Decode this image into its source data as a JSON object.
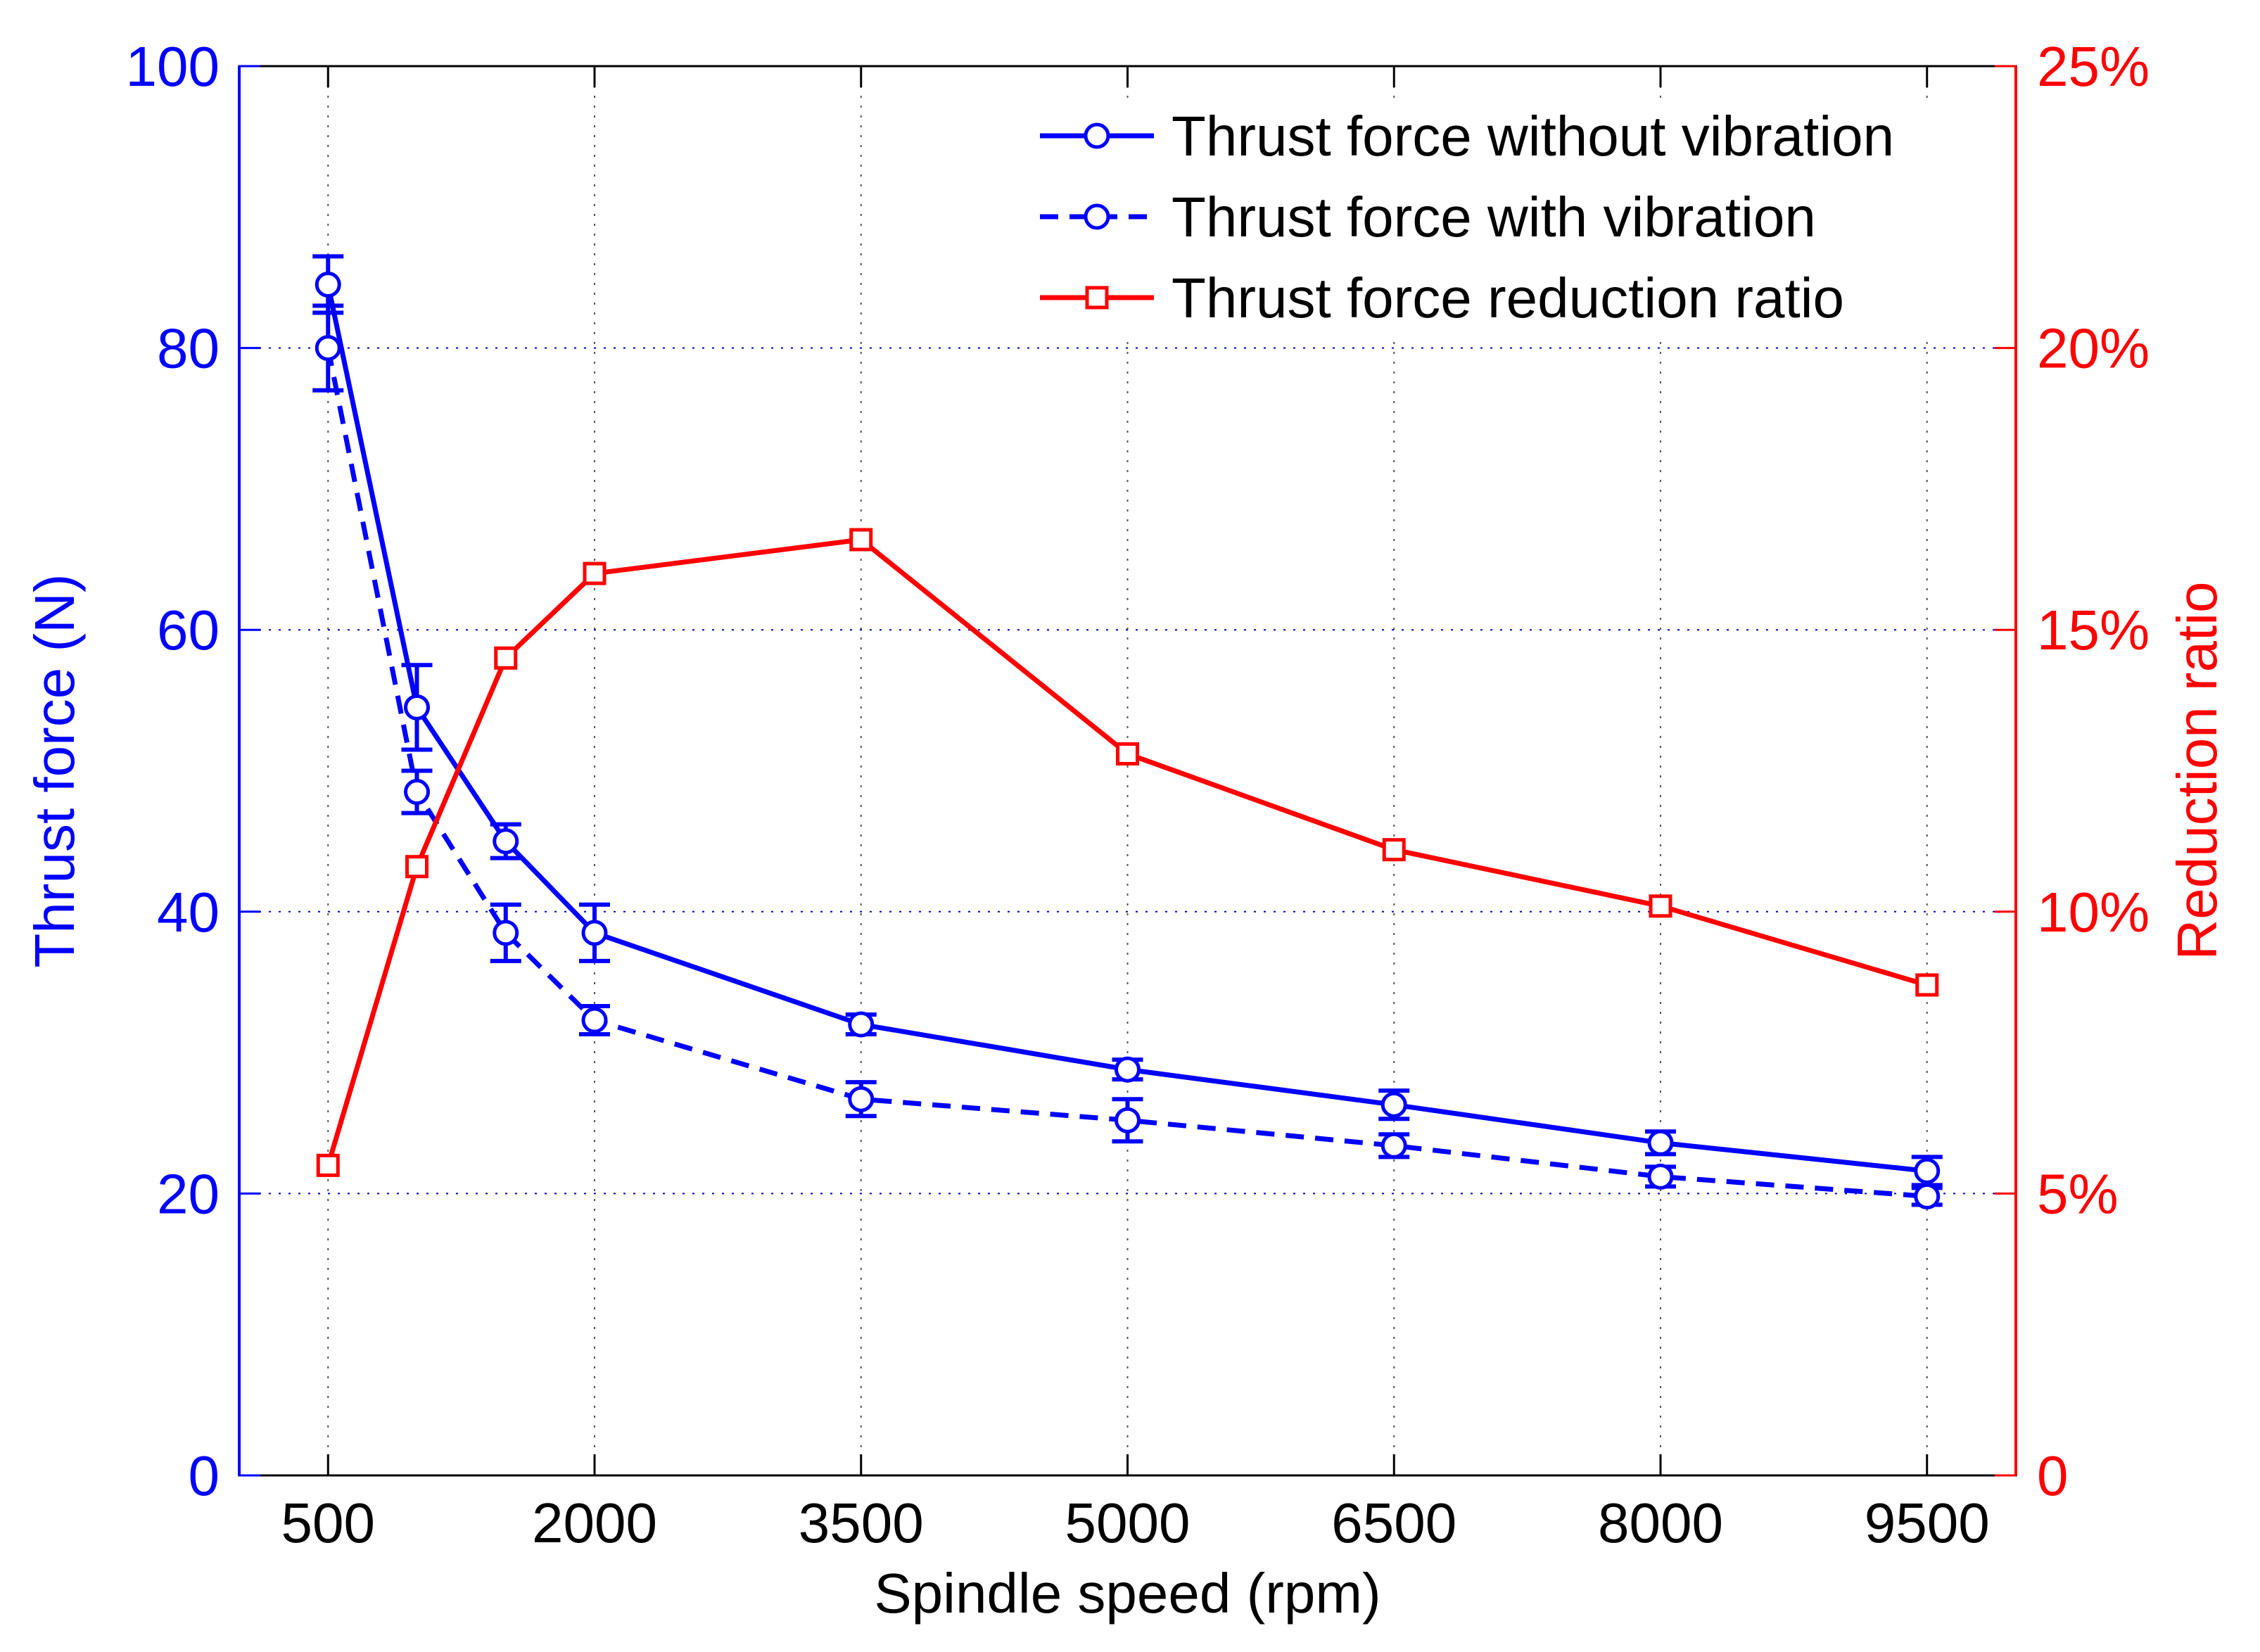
{
  "chart_data": {
    "type": "line",
    "xlabel": "Spindle speed (rpm)",
    "ylabel_left": "Thrust force (N)",
    "ylabel_right": "Reduction ratio",
    "x_domain": [
      0,
      10000
    ],
    "x_tick_values": [
      500,
      2000,
      3500,
      5000,
      6500,
      8000,
      9500
    ],
    "x_tick_labels": [
      "500",
      "2000",
      "3500",
      "5000",
      "6500",
      "8000",
      "9500"
    ],
    "y_left_range": [
      0,
      100
    ],
    "y_left_tick_values": [
      0,
      20,
      40,
      60,
      80,
      100
    ],
    "y_left_tick_labels": [
      "0",
      "20",
      "40",
      "60",
      "80",
      "100"
    ],
    "y_right_range": [
      0,
      25
    ],
    "y_right_tick_values": [
      0,
      5,
      10,
      15,
      20,
      25
    ],
    "y_right_tick_labels": [
      "0",
      "5%",
      "10%",
      "15%",
      "20%",
      "25%"
    ],
    "grid": true,
    "legend_position": "top-right",
    "series": [
      {
        "name": "Thrust force without vibration",
        "axis": "left",
        "color": "#0000ff",
        "line_style": "solid",
        "marker": "circle",
        "x": [
          500,
          1000,
          1500,
          2000,
          3500,
          5000,
          6500,
          8000,
          9500
        ],
        "y": [
          84.5,
          54.5,
          45.0,
          38.5,
          32.0,
          28.8,
          26.3,
          23.6,
          21.6
        ],
        "error": [
          2.0,
          3.0,
          1.2,
          2.0,
          0.7,
          0.7,
          1.0,
          0.8,
          1.0
        ]
      },
      {
        "name": "Thrust force with vibration",
        "axis": "left",
        "color": "#0000ff",
        "line_style": "dashed",
        "marker": "circle",
        "x": [
          500,
          1000,
          1500,
          2000,
          3500,
          5000,
          6500,
          8000,
          9500
        ],
        "y": [
          80.0,
          48.5,
          38.5,
          32.3,
          26.7,
          25.2,
          23.4,
          21.2,
          19.8
        ],
        "error": [
          3.0,
          1.5,
          2.0,
          1.0,
          1.2,
          1.5,
          0.8,
          0.7,
          0.6
        ]
      },
      {
        "name": "Thrust force reduction ratio",
        "axis": "right",
        "color": "#ff0000",
        "line_style": "solid",
        "marker": "square",
        "x": [
          500,
          1000,
          1500,
          2000,
          3500,
          5000,
          6500,
          8000,
          9500
        ],
        "y": [
          5.5,
          10.8,
          14.5,
          16.0,
          16.6,
          12.8,
          11.1,
          10.1,
          8.7
        ]
      }
    ]
  }
}
